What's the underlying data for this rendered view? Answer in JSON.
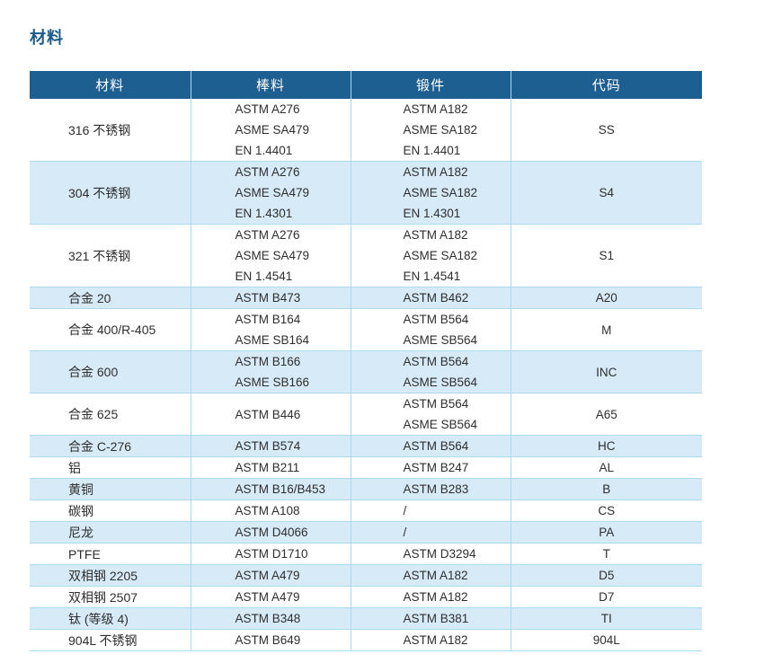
{
  "page_title": "材料",
  "table": {
    "columns": [
      "材料",
      "棒料",
      "锻件",
      "代码"
    ],
    "rows": [
      {
        "material": "316 不锈钢",
        "bar": [
          "ASTM A276",
          "ASME SA479",
          "EN 1.4401"
        ],
        "forging": [
          "ASTM A182",
          "ASME SA182",
          "EN 1.4401"
        ],
        "code": "SS"
      },
      {
        "material": "304 不锈钢",
        "bar": [
          "ASTM A276",
          "ASME SA479",
          "EN 1.4301"
        ],
        "forging": [
          "ASTM A182",
          "ASME SA182",
          "EN 1.4301"
        ],
        "code": "S4"
      },
      {
        "material": "321 不锈钢",
        "bar": [
          "ASTM A276",
          "ASME SA479",
          "EN 1.4541"
        ],
        "forging": [
          "ASTM A182",
          "ASME SA182",
          "EN 1.4541"
        ],
        "code": "S1"
      },
      {
        "material": "合金 20",
        "bar": [
          "ASTM B473"
        ],
        "forging": [
          "ASTM B462"
        ],
        "code": "A20"
      },
      {
        "material": "合金 400/R-405",
        "bar": [
          "ASTM B164",
          "ASME SB164"
        ],
        "forging": [
          "ASTM B564",
          "ASME SB564"
        ],
        "code": "M"
      },
      {
        "material": "合金 600",
        "bar": [
          "ASTM B166",
          "ASME SB166"
        ],
        "forging": [
          "ASTM B564",
          "ASME SB564"
        ],
        "code": "INC"
      },
      {
        "material": "合金 625",
        "bar": [
          "ASTM B446"
        ],
        "forging": [
          "ASTM B564",
          "ASME SB564"
        ],
        "code": "A65"
      },
      {
        "material": "合金 C-276",
        "bar": [
          "ASTM B574"
        ],
        "forging": [
          "ASTM B564"
        ],
        "code": "HC"
      },
      {
        "material": "铝",
        "bar": [
          "ASTM B211"
        ],
        "forging": [
          "ASTM B247"
        ],
        "code": "AL"
      },
      {
        "material": "黄铜",
        "bar": [
          "ASTM B16/B453"
        ],
        "forging": [
          "ASTM B283"
        ],
        "code": "B"
      },
      {
        "material": "碳钢",
        "bar": [
          "ASTM A108"
        ],
        "forging": [
          "/"
        ],
        "code": "CS"
      },
      {
        "material": "尼龙",
        "bar": [
          "ASTM D4066"
        ],
        "forging": [
          "/"
        ],
        "code": "PA"
      },
      {
        "material": "PTFE",
        "bar": [
          "ASTM D1710"
        ],
        "forging": [
          "ASTM D3294"
        ],
        "code": "T"
      },
      {
        "material": "双相钢 2205",
        "bar": [
          "ASTM A479"
        ],
        "forging": [
          "ASTM A182"
        ],
        "code": "D5"
      },
      {
        "material": "双相钢 2507",
        "bar": [
          "ASTM A479"
        ],
        "forging": [
          "ASTM A182"
        ],
        "code": "D7"
      },
      {
        "material": "钛 (等级 4)",
        "bar": [
          "ASTM B348"
        ],
        "forging": [
          "ASTM B381"
        ],
        "code": "TI"
      },
      {
        "material": "904L 不锈钢",
        "bar": [
          "ASTM B649"
        ],
        "forging": [
          "ASTM A182"
        ],
        "code": "904L"
      }
    ]
  },
  "colors": {
    "header_bg": "#1e5f91",
    "stripe_bg": "#d7eaf8",
    "border": "#abd9f0",
    "title": "#1a5a8a",
    "text": "#2e2e2e"
  }
}
